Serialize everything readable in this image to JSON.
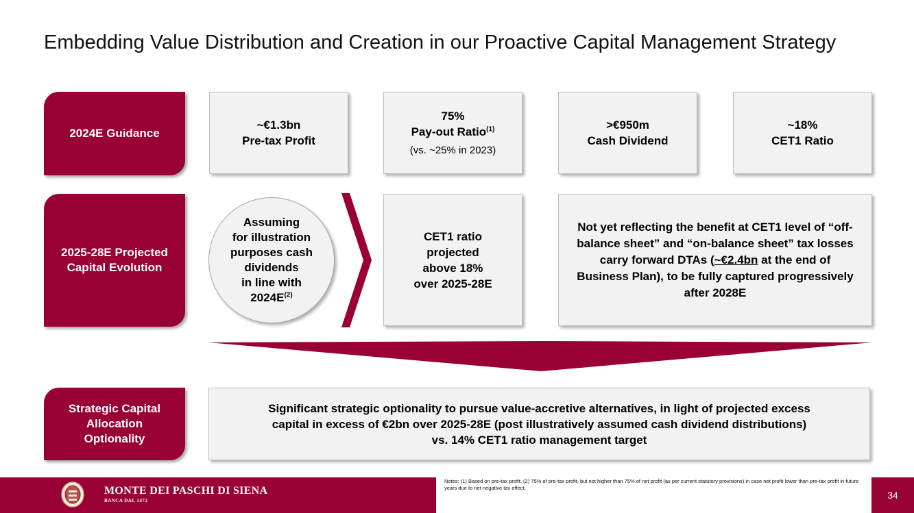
{
  "title": "Embedding Value Distribution and Creation in our Proactive Capital Management Strategy",
  "guidance": {
    "label": "2024E Guidance",
    "items": [
      {
        "value": "~€1.3bn",
        "label": "Pre-tax Profit"
      },
      {
        "value": "75%",
        "label": "Pay-out Ratio",
        "sup": "(1)",
        "sub": "(vs. ~25% in 2023)"
      },
      {
        "value": ">€950m",
        "label": "Cash Dividend"
      },
      {
        "value": "~18%",
        "label": "CET1 Ratio"
      }
    ]
  },
  "projected": {
    "label_line1": "2025-28E Projected",
    "label_line2": "Capital Evolution",
    "circle_lines": [
      "Assuming",
      "for illustration",
      "purposes cash",
      "dividends",
      "in line with"
    ],
    "circle_last": "2024E",
    "circle_sup": "(2)",
    "cet1_lines": [
      "CET1 ratio",
      "projected",
      "above 18%",
      "over 2025-28E"
    ],
    "dta_part1": "Not yet reflecting the benefit at CET1 level of “off-balance sheet” and “on-balance sheet” tax losses carry forward DTAs (",
    "dta_underline": "~€2.4bn",
    "dta_part2": " at the end of Business Plan), to be fully captured progressively after 2028E"
  },
  "optionality": {
    "label_lines": [
      "Strategic Capital",
      "Allocation",
      "Optionality"
    ],
    "lines": [
      "Significant strategic optionality to pursue value-accretive alternatives, in light of projected excess",
      "capital in excess of €2bn over 2025-28E (post illustratively assumed cash dividend distributions)",
      "vs. 14% CET1 ratio management target"
    ]
  },
  "footer": {
    "brand": "MONTE DEI PASCHI DI SIENA",
    "brand_sub": "BANCA DAL 1472",
    "notes": "Notes: (1) Based on pre-tax profit. (2) 75% of pre-tax profit, but not higher than 75% of net profit (as per current statutory provisions) in case net profit lower than pre-tax profit in future years due to net negative tax effect.",
    "page_number": "34"
  },
  "colors": {
    "accent": "#990033",
    "box": "#f2f2f2"
  }
}
